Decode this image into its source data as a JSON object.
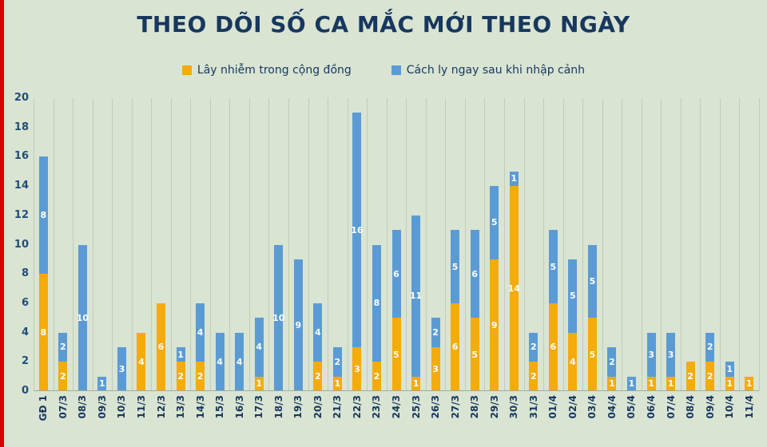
{
  "title": "THEO DÕI SỐ CA MẮC MỚI THEO NGÀY",
  "legend": [
    {
      "label": "Lây nhiễm trong cộng đồng",
      "color": "#F4AB0C"
    },
    {
      "label": "Cách ly ngay sau khi nhập cảnh",
      "color": "#5B9BD5"
    }
  ],
  "colors": {
    "background": "#D9E4D2",
    "left_stripe": "#DA0000",
    "title_text": "#17375E",
    "axis_text": "#1F4E79",
    "gridline": "#C2CCBF",
    "bar_label_text": "#FFFFFF"
  },
  "y_axis": {
    "ticks": [
      0,
      2,
      4,
      6,
      8,
      10,
      12,
      14,
      16,
      18,
      20
    ]
  },
  "chart_data": {
    "type": "bar",
    "stacked": true,
    "title": "THEO DÕI SỐ CA MẮC MỚI THEO NGÀY",
    "categories": [
      "GĐ 1",
      "07/3",
      "08/3",
      "09/3",
      "10/3",
      "11/3",
      "12/3",
      "13/3",
      "14/3",
      "15/3",
      "16/3",
      "17/3",
      "18/3",
      "19/3",
      "20/3",
      "21/3",
      "22/3",
      "23/3",
      "24/3",
      "25/3",
      "26/3",
      "27/3",
      "28/3",
      "29/3",
      "30/3",
      "31/3",
      "01/4",
      "02/4",
      "03/4",
      "04/4",
      "05/4",
      "06/4",
      "07/4",
      "08/4",
      "09/4",
      "10/4",
      "11/4"
    ],
    "series": [
      {
        "name": "Lây nhiễm trong cộng đồng",
        "color": "#F4AB0C",
        "values": [
          8,
          2,
          0,
          0,
          0,
          4,
          6,
          2,
          2,
          0,
          0,
          1,
          0,
          0,
          2,
          1,
          3,
          2,
          5,
          1,
          3,
          6,
          5,
          9,
          14,
          2,
          6,
          4,
          5,
          1,
          0,
          1,
          1,
          2,
          2,
          1,
          1
        ]
      },
      {
        "name": "Cách ly ngay sau khi nhập cảnh",
        "color": "#5B9BD5",
        "values": [
          8,
          2,
          10,
          1,
          3,
          0,
          0,
          1,
          4,
          4,
          4,
          4,
          10,
          9,
          4,
          2,
          16,
          8,
          6,
          11,
          2,
          5,
          6,
          5,
          1,
          2,
          5,
          5,
          5,
          2,
          1,
          3,
          3,
          0,
          2,
          1,
          0
        ]
      }
    ],
    "totals": [
      16,
      4,
      10,
      1,
      3,
      4,
      6,
      3,
      6,
      4,
      4,
      5,
      10,
      9,
      6,
      3,
      19,
      10,
      11,
      12,
      5,
      11,
      11,
      14,
      15,
      4,
      11,
      9,
      10,
      3,
      1,
      4,
      4,
      2,
      4,
      2,
      1
    ],
    "ylim": [
      0,
      20
    ],
    "ytick_step": 2,
    "grid": "vertical-only",
    "legend_position": "top",
    "bar_value_labels": true,
    "x_tick_rotation": -90
  }
}
